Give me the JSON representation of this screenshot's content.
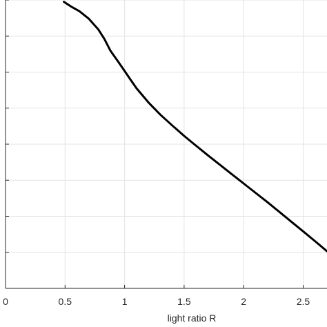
{
  "chart_data": {
    "type": "line",
    "title": "",
    "xlabel": "light ratio R",
    "ylabel": "",
    "xlim": [
      0,
      2.7
    ],
    "y_tick_count": 9,
    "x_ticks": [
      0,
      0.5,
      1,
      1.5,
      2,
      2.5
    ],
    "x_tick_labels": [
      "0",
      "0.5",
      "1",
      "1.5",
      "2",
      "2.5"
    ],
    "grid": true,
    "series": [
      {
        "color": "#000000",
        "x": [
          0.49,
          0.55,
          0.62,
          0.7,
          0.78,
          0.83,
          0.88,
          0.95,
          1.0,
          1.05,
          1.1,
          1.2,
          1.3,
          1.4,
          1.5,
          1.6,
          1.7,
          1.8,
          1.9,
          2.0,
          2.1,
          2.2,
          2.3,
          2.4,
          2.5,
          2.6,
          2.7
        ],
        "y": [
          7.95,
          7.82,
          7.69,
          7.48,
          7.18,
          6.92,
          6.6,
          6.27,
          6.03,
          5.79,
          5.55,
          5.16,
          4.82,
          4.52,
          4.23,
          3.96,
          3.69,
          3.43,
          3.17,
          2.91,
          2.65,
          2.39,
          2.12,
          1.85,
          1.58,
          1.31,
          1.03
        ]
      }
    ]
  }
}
